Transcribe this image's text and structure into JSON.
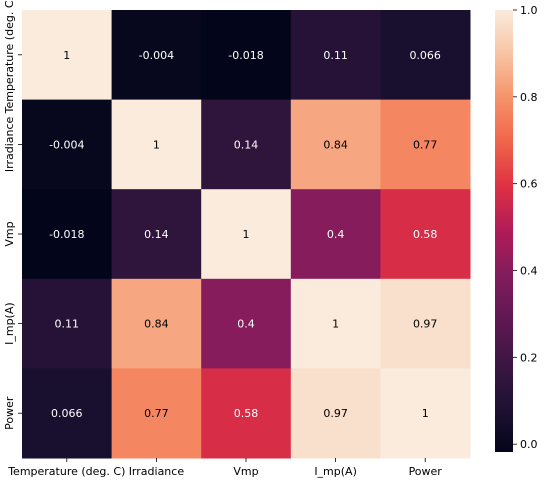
{
  "chart_data": {
    "type": "heatmap",
    "row_labels": [
      "Temperature (deg. C)",
      "Irradiance",
      "Vmp",
      "I_mp(A)",
      "Power"
    ],
    "col_labels": [
      "Temperature (deg. C)",
      "Irradiance",
      "Vmp",
      "I_mp(A)",
      "Power"
    ],
    "matrix": [
      [
        1,
        -0.004,
        -0.018,
        0.11,
        0.066
      ],
      [
        -0.004,
        1,
        0.14,
        0.84,
        0.77
      ],
      [
        -0.018,
        0.14,
        1,
        0.4,
        0.58
      ],
      [
        0.11,
        0.84,
        0.4,
        1,
        0.97
      ],
      [
        0.066,
        0.77,
        0.58,
        0.97,
        1
      ]
    ],
    "annotations": [
      [
        "1",
        "-0.004",
        "-0.018",
        "0.11",
        "0.066"
      ],
      [
        "-0.004",
        "1",
        "0.14",
        "0.84",
        "0.77"
      ],
      [
        "-0.018",
        "0.14",
        "1",
        "0.4",
        "0.58"
      ],
      [
        "0.11",
        "0.84",
        "0.4",
        "1",
        "0.97"
      ],
      [
        "0.066",
        "0.77",
        "0.58",
        "0.97",
        "1"
      ]
    ],
    "colorbar": {
      "vmin": -0.018,
      "vmax": 1.0,
      "ticks": [
        0.0,
        0.2,
        0.4,
        0.6,
        0.8,
        1.0
      ],
      "tick_labels": [
        "0.0",
        "0.2",
        "0.4",
        "0.6",
        "0.8",
        "1.0"
      ]
    },
    "colormap": "rocket",
    "title": "",
    "xlabel": "",
    "ylabel": ""
  }
}
